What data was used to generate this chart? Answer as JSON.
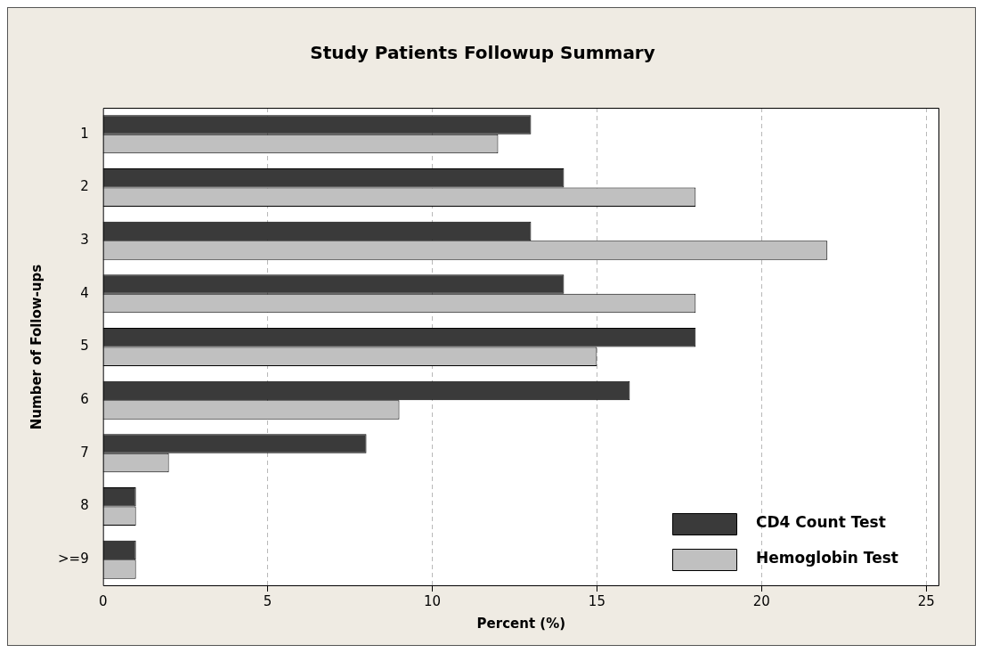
{
  "chart_data": {
    "type": "bar",
    "orientation": "horizontal",
    "title": "Study Patients Followup Summary",
    "xlabel": "Percent (%)",
    "ylabel": "Number of Follow-ups",
    "categories": [
      "1",
      "2",
      "3",
      "4",
      "5",
      "6",
      "7",
      "8",
      ">=9"
    ],
    "series": [
      {
        "name": "CD4 Count Test",
        "color": "#3a3a3a",
        "values": [
          13,
          14,
          13,
          14,
          18,
          16,
          8,
          1,
          1
        ]
      },
      {
        "name": "Hemoglobin Test",
        "color": "#c0c0c0",
        "values": [
          12,
          18,
          22,
          18,
          15,
          9,
          2,
          1,
          1
        ]
      }
    ],
    "xlim": [
      0,
      25.4
    ],
    "xticks": [
      0,
      5,
      10,
      15,
      20,
      25
    ],
    "grid": "x",
    "legend": "bottom right"
  }
}
